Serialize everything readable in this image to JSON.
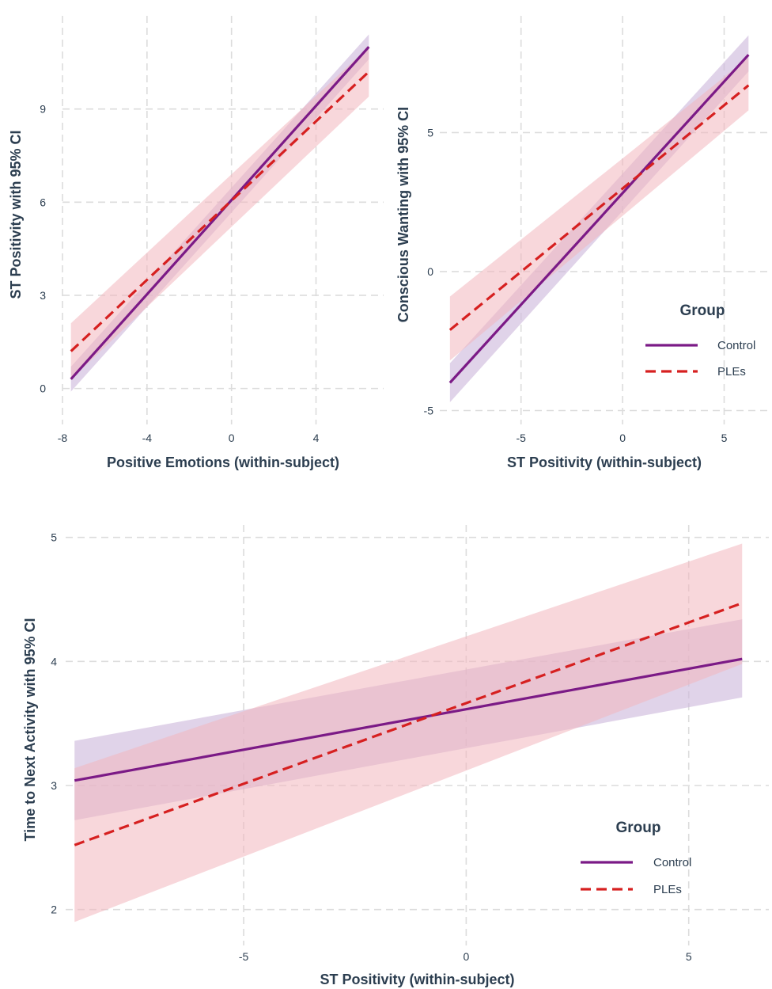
{
  "colors": {
    "control": "#7b1a86",
    "ples": "#d62020",
    "control_band": "#cdb8dc",
    "ples_band": "#f2b6be",
    "text": "#2c3e50"
  },
  "chart_data": [
    {
      "type": "line",
      "xlabel": "Positive Emotions (within-subject)",
      "ylabel": "ST Positivity with 95% CI",
      "xlim": [
        -8,
        7.2
      ],
      "ylim": [
        -0.8,
        12.0
      ],
      "xticks": [
        -8,
        -4,
        0,
        4
      ],
      "yticks": [
        0,
        3,
        6,
        9
      ],
      "grid": true,
      "legend": null,
      "series": [
        {
          "group": "control",
          "x": [
            -7.6,
            6.5
          ],
          "y": [
            0.3,
            11.0
          ],
          "ci_lower": [
            -0.1,
            10.6
          ],
          "ci_upper": [
            0.7,
            11.4
          ]
        },
        {
          "group": "ples",
          "x": [
            -7.6,
            6.5
          ],
          "y": [
            1.2,
            10.2
          ],
          "ci_lower": [
            0.3,
            9.4
          ],
          "ci_upper": [
            2.1,
            11.0
          ]
        }
      ]
    },
    {
      "type": "line",
      "xlabel": "ST Positivity (within-subject)",
      "ylabel": "Conscious Wanting with 95% CI",
      "xlim": [
        -9,
        7.2
      ],
      "ylim": [
        -5.1,
        9.2
      ],
      "xticks": [
        -5,
        0,
        5
      ],
      "yticks": [
        -5,
        0,
        5
      ],
      "grid": true,
      "legend": {
        "title": "Group",
        "position": "right",
        "items": [
          {
            "label": "Control",
            "group": "control"
          },
          {
            "label": "PLEs",
            "group": "ples"
          }
        ]
      },
      "series": [
        {
          "group": "control",
          "x": [
            -8.5,
            6.2
          ],
          "y": [
            -4.0,
            7.8
          ],
          "ci_lower": [
            -4.7,
            7.2
          ],
          "ci_upper": [
            -3.3,
            8.5
          ]
        },
        {
          "group": "ples",
          "x": [
            -8.5,
            6.2
          ],
          "y": [
            -2.1,
            6.7
          ],
          "ci_lower": [
            -3.2,
            5.8
          ],
          "ci_upper": [
            -0.9,
            7.7
          ]
        }
      ]
    },
    {
      "type": "line",
      "xlabel": "ST Positivity (within-subject)",
      "ylabel": "Time to Next Activity with 95% CI",
      "xlim": [
        -9,
        6.8
      ],
      "ylim": [
        1.8,
        5.1
      ],
      "xticks": [
        -5,
        0,
        5
      ],
      "yticks": [
        2,
        3,
        4,
        5
      ],
      "grid": true,
      "legend": {
        "title": "Group",
        "position": "right",
        "items": [
          {
            "label": "Control",
            "group": "control"
          },
          {
            "label": "PLEs",
            "group": "ples"
          }
        ]
      },
      "series": [
        {
          "group": "control",
          "x": [
            -8.8,
            6.2
          ],
          "y": [
            3.04,
            4.02
          ],
          "ci_lower": [
            2.72,
            3.71
          ],
          "ci_upper": [
            3.36,
            4.34
          ]
        },
        {
          "group": "ples",
          "x": [
            -8.8,
            6.2
          ],
          "y": [
            2.52,
            4.47
          ],
          "ci_lower": [
            1.9,
            3.98
          ],
          "ci_upper": [
            3.14,
            4.95
          ]
        }
      ]
    }
  ]
}
